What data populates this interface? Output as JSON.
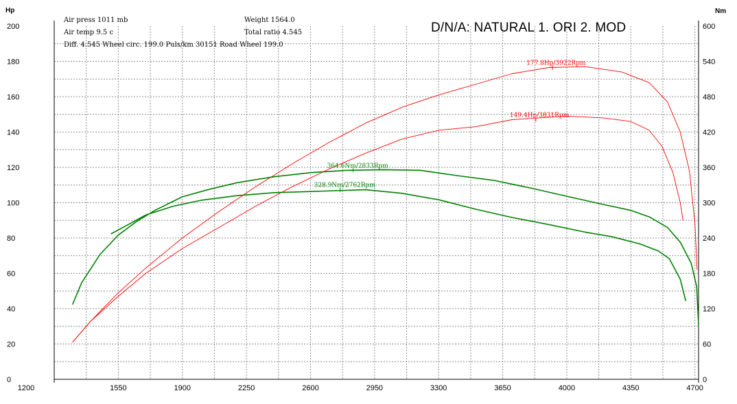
{
  "header": {
    "title": "D/N/A: NATURAL  1. ORI 2. MOD",
    "left_unit": "Hp",
    "right_unit": "Nm",
    "info_line1_left": "Air press  1011 mb",
    "info_line1_right": "Weight  1564.0",
    "info_line2_left": "Air temp   9.5 c",
    "info_line2_right": "Total ratio 4.545",
    "info_line3": "Diff.     4.545   Wheel circ. 199.0   Puls/km   30151   Road Wheel 199.0"
  },
  "chart_data": {
    "type": "line",
    "title": "D/N/A: NATURAL  1. ORI 2. MOD",
    "xlabel": "",
    "ylabel": "Hp",
    "y2label": "Nm",
    "xlim": [
      1200,
      4720
    ],
    "ylim": [
      0,
      200
    ],
    "y2lim": [
      0,
      600
    ],
    "x_ticks": [
      "1200",
      "1550",
      "1900",
      "2250",
      "2600",
      "2950",
      "3300",
      "3650",
      "4000",
      "4350",
      "4700"
    ],
    "y_ticks": [
      "0",
      "20",
      "40",
      "60",
      "80",
      "100",
      "120",
      "140",
      "160",
      "180",
      "200"
    ],
    "y2_ticks": [
      "0",
      "60",
      "120",
      "180",
      "240",
      "300",
      "360",
      "420",
      "480",
      "540",
      "600"
    ],
    "grid": true,
    "colors": {
      "power": "#ff0000",
      "torque": "#008000"
    },
    "series": [
      {
        "kind": "power",
        "axis": "left",
        "color": "#ff0000",
        "peak_label": "177.8Hp/3922Rpm",
        "peak": [
          3922,
          177.8
        ],
        "points": [
          [
            1300,
            21
          ],
          [
            1400,
            33
          ],
          [
            1550,
            49
          ],
          [
            1700,
            63
          ],
          [
            1900,
            80
          ],
          [
            2100,
            95
          ],
          [
            2300,
            109
          ],
          [
            2500,
            122
          ],
          [
            2700,
            134
          ],
          [
            2900,
            145
          ],
          [
            3100,
            154
          ],
          [
            3300,
            161
          ],
          [
            3500,
            167
          ],
          [
            3700,
            173
          ],
          [
            3900,
            176.5
          ],
          [
            3922,
            177.8
          ],
          [
            4100,
            177
          ],
          [
            4300,
            174
          ],
          [
            4450,
            168
          ],
          [
            4550,
            157
          ],
          [
            4620,
            140
          ],
          [
            4670,
            118
          ],
          [
            4700,
            88
          ],
          [
            4712,
            62
          ]
        ]
      },
      {
        "kind": "power",
        "axis": "left",
        "color": "#ff0000",
        "peak_label": "149.4Hp/3831Rpm",
        "peak": [
          3831,
          149.4
        ],
        "points": [
          [
            1300,
            21
          ],
          [
            1400,
            33
          ],
          [
            1550,
            47
          ],
          [
            1700,
            60
          ],
          [
            1900,
            74
          ],
          [
            2100,
            86
          ],
          [
            2300,
            98
          ],
          [
            2500,
            109
          ],
          [
            2700,
            119
          ],
          [
            2900,
            128
          ],
          [
            3100,
            136
          ],
          [
            3300,
            141
          ],
          [
            3500,
            143
          ],
          [
            3700,
            147
          ],
          [
            3831,
            149.4
          ],
          [
            4000,
            149
          ],
          [
            4200,
            148
          ],
          [
            4350,
            146
          ],
          [
            4450,
            141
          ],
          [
            4520,
            132
          ],
          [
            4580,
            117
          ],
          [
            4620,
            100
          ],
          [
            4635,
            90
          ]
        ]
      },
      {
        "kind": "torque",
        "axis": "right",
        "color": "#008000",
        "peak_label": "364.6Nm/2833Rpm",
        "peak": [
          2833,
          364.6
        ],
        "points": [
          [
            1300,
            127
          ],
          [
            1350,
            164
          ],
          [
            1450,
            212
          ],
          [
            1550,
            245
          ],
          [
            1650,
            268
          ],
          [
            1750,
            287
          ],
          [
            1900,
            310
          ],
          [
            2050,
            323
          ],
          [
            2200,
            334
          ],
          [
            2400,
            344
          ],
          [
            2600,
            351
          ],
          [
            2800,
            355
          ],
          [
            2833,
            364.6
          ],
          [
            3000,
            356
          ],
          [
            3200,
            355
          ],
          [
            3400,
            346
          ],
          [
            3600,
            338
          ],
          [
            3800,
            325
          ],
          [
            4000,
            311
          ],
          [
            4200,
            297
          ],
          [
            4350,
            287
          ],
          [
            4450,
            276
          ],
          [
            4550,
            258
          ],
          [
            4620,
            233
          ],
          [
            4680,
            197
          ],
          [
            4710,
            157
          ],
          [
            4720,
            92
          ]
        ]
      },
      {
        "kind": "torque",
        "axis": "right",
        "color": "#008000",
        "peak_label": "328.9Nm/2762Rpm",
        "peak": [
          2762,
          328.9
        ],
        "points": [
          [
            1510,
            247
          ],
          [
            1600,
            262
          ],
          [
            1700,
            279
          ],
          [
            1850,
            294
          ],
          [
            2000,
            304
          ],
          [
            2200,
            312
          ],
          [
            2400,
            317
          ],
          [
            2600,
            319
          ],
          [
            2762,
            328.9
          ],
          [
            2900,
            322
          ],
          [
            3100,
            316
          ],
          [
            3300,
            305
          ],
          [
            3500,
            289
          ],
          [
            3700,
            275
          ],
          [
            3900,
            263
          ],
          [
            4100,
            250
          ],
          [
            4250,
            242
          ],
          [
            4400,
            230
          ],
          [
            4500,
            218
          ],
          [
            4560,
            205
          ],
          [
            4620,
            170
          ],
          [
            4650,
            133
          ]
        ]
      }
    ]
  }
}
